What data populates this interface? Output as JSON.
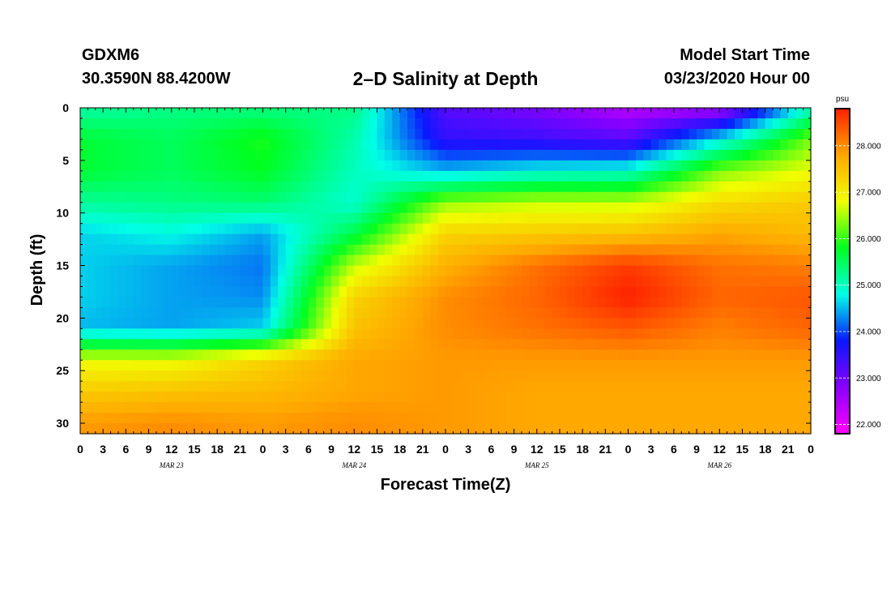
{
  "header": {
    "station": "GDXM6",
    "coordinates": "30.3590N 88.4200W",
    "title": "2–D Salinity at Depth",
    "model_start_label": "Model Start Time",
    "model_start_value": "03/23/2020 Hour 00"
  },
  "chart_data": {
    "type": "heatmap",
    "title": "2–D Salinity at Depth",
    "xlabel": "Forecast Time(Z)",
    "ylabel": "Depth (ft)",
    "x_tick_labels": [
      "0",
      "3",
      "6",
      "9",
      "12",
      "15",
      "18",
      "21",
      "0",
      "3",
      "6",
      "9",
      "12",
      "15",
      "18",
      "21",
      "0",
      "3",
      "6",
      "9",
      "12",
      "15",
      "18",
      "21",
      "0",
      "3",
      "6",
      "9",
      "12",
      "15",
      "18",
      "21",
      "0"
    ],
    "x_date_labels": [
      "MAR 23",
      "MAR 24",
      "MAR 25",
      "MAR 26"
    ],
    "x_range_hours": [
      0,
      96
    ],
    "y_tick_labels": [
      "0",
      "5",
      "10",
      "15",
      "20",
      "25",
      "30"
    ],
    "y_range_ft": [
      0,
      31
    ],
    "grid": false,
    "colorbar": {
      "unit": "psu",
      "range": [
        21.8,
        28.8
      ],
      "tick_labels": [
        "22.000",
        "23.000",
        "24.000",
        "25.000",
        "26.000",
        "27.000",
        "28.000"
      ],
      "colors": [
        "#ff00ff",
        "#8a00ff",
        "#0a18ff",
        "#00ffe6",
        "#00ff20",
        "#f0ff00",
        "#ffa800",
        "#ff2000"
      ]
    },
    "depth_ft": [
      0,
      3,
      6,
      9,
      12,
      15,
      18,
      21,
      24,
      27,
      30
    ],
    "time_hours": [
      0,
      12,
      24,
      36,
      48,
      60,
      72,
      84,
      96
    ],
    "values": [
      [
        25.1,
        25.3,
        25.3,
        25.3,
        23.2,
        22.9,
        22.4,
        22.5,
        25.0
      ],
      [
        25.7,
        25.5,
        25.9,
        25.1,
        23.5,
        23.4,
        23.2,
        24.7,
        26.3
      ],
      [
        25.7,
        25.5,
        25.8,
        25.0,
        24.5,
        24.8,
        24.9,
        26.3,
        26.8
      ],
      [
        25.2,
        25.3,
        25.4,
        24.9,
        26.4,
        26.6,
        26.6,
        27.2,
        27.4
      ],
      [
        24.6,
        24.8,
        24.4,
        25.6,
        27.3,
        27.4,
        27.5,
        27.8,
        27.6
      ],
      [
        24.6,
        24.4,
        24.2,
        26.6,
        27.7,
        28.2,
        28.6,
        28.2,
        28.1
      ],
      [
        24.6,
        24.4,
        24.3,
        27.3,
        28.0,
        28.3,
        28.8,
        28.3,
        28.4
      ],
      [
        24.5,
        24.4,
        24.6,
        27.5,
        28.0,
        28.2,
        28.4,
        28.1,
        28.3
      ],
      [
        26.8,
        26.8,
        27.3,
        27.8,
        27.9,
        27.9,
        27.9,
        27.9,
        27.9
      ],
      [
        27.4,
        27.5,
        27.6,
        27.8,
        27.9,
        27.8,
        27.8,
        27.8,
        27.8
      ],
      [
        27.9,
        28.0,
        27.9,
        28.0,
        27.9,
        27.8,
        27.8,
        27.8,
        27.8
      ]
    ]
  }
}
